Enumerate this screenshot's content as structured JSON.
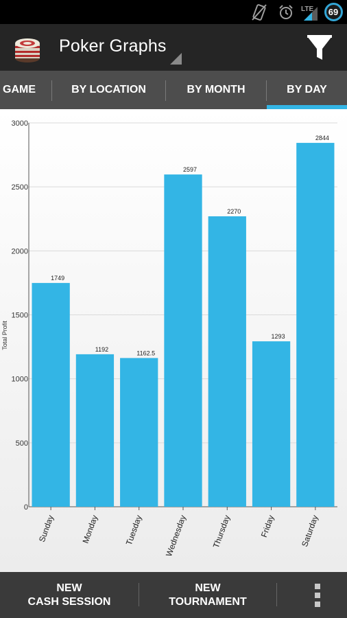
{
  "status_bar": {
    "network_label": "LTE",
    "battery_level": "69",
    "icons": [
      "vibrate-icon",
      "alarm-icon",
      "signal-icon",
      "battery-icon"
    ]
  },
  "action_bar": {
    "title": "Poker Graphs",
    "logo_icon": "poker-chips-icon",
    "filter_icon": "filter-icon"
  },
  "tabs": [
    {
      "label": "GAME",
      "selected": false
    },
    {
      "label": "BY LOCATION",
      "selected": false
    },
    {
      "label": "BY MONTH",
      "selected": false
    },
    {
      "label": "BY DAY",
      "selected": true
    }
  ],
  "bottom_bar": {
    "new_cash_line1": "NEW",
    "new_cash_line2": "CASH SESSION",
    "new_tournament_line1": "NEW",
    "new_tournament_line2": "TOURNAMENT",
    "overflow_icon": "overflow-menu-icon"
  },
  "colors": {
    "bar": "#33b5e5",
    "accent": "#33b5e5",
    "action_bar": "#252525",
    "tab_bar": "#4d4d4d",
    "bottom_bar": "#3a3a3a"
  },
  "chart_data": {
    "type": "bar",
    "ylabel": "Total Profit",
    "xlabel": "",
    "ylim": [
      0,
      3000
    ],
    "yticks": [
      0,
      500,
      1000,
      1500,
      2000,
      2500,
      3000
    ],
    "categories": [
      "Sunday",
      "Monday",
      "Tuesday",
      "Wednesday",
      "Thursday",
      "Friday",
      "Saturday"
    ],
    "values": [
      1749,
      1192,
      1162.5,
      2597,
      2270,
      1293,
      2844
    ],
    "data_labels": [
      "1749",
      "1192",
      "1162.5",
      "2597",
      "2270",
      "1293",
      "2844"
    ],
    "grid": true,
    "legend": "none"
  }
}
